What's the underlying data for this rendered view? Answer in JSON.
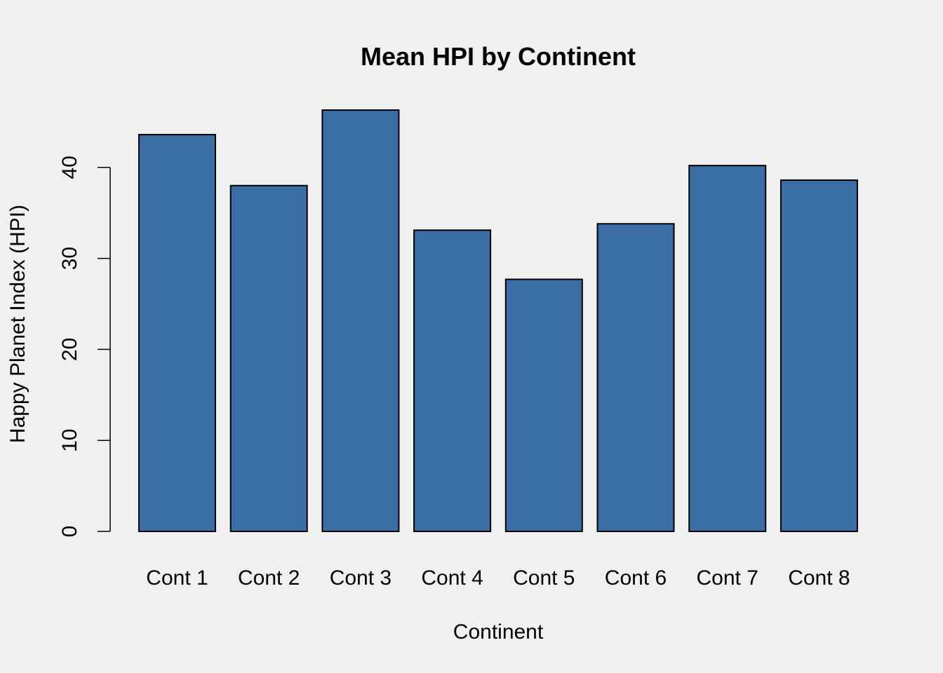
{
  "chart_data": {
    "type": "bar",
    "title": "Mean HPI by Continent",
    "xlabel": "Continent",
    "ylabel": "Happy Planet Index (HPI)",
    "categories": [
      "Cont 1",
      "Cont 2",
      "Cont 3",
      "Cont 4",
      "Cont 5",
      "Cont 6",
      "Cont 7",
      "Cont 8"
    ],
    "values": [
      43.6,
      38.0,
      46.3,
      33.1,
      27.7,
      33.8,
      40.2,
      38.6
    ],
    "ylim": [
      0,
      46.3
    ],
    "yticks": [
      0,
      10,
      20,
      30,
      40
    ],
    "ytick_labels": [
      "0",
      "10",
      "20",
      "30",
      "40"
    ],
    "bar_color": "#3a6ea5",
    "grid": false,
    "legend": "none"
  }
}
